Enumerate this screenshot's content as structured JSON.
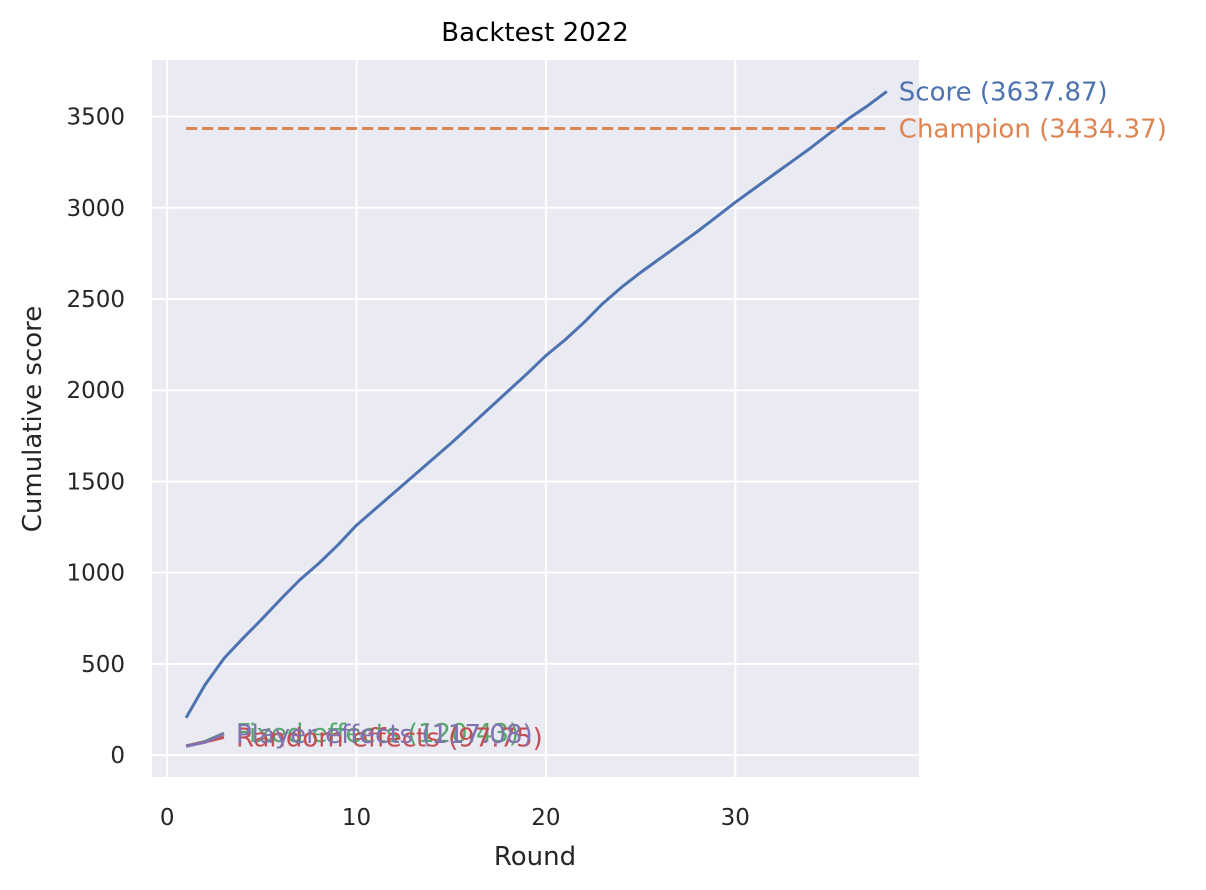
{
  "chart_data": {
    "type": "line",
    "title": "Backtest 2022",
    "xlabel": "Round",
    "ylabel": "Cumulative score",
    "xlim": [
      -0.8,
      39.7
    ],
    "ylim": [
      -120,
      3810
    ],
    "xticks": [
      0,
      10,
      20,
      30
    ],
    "yticks": [
      0,
      500,
      1000,
      1500,
      2000,
      2500,
      3000,
      3500
    ],
    "grid": true,
    "background": "#eaeaf2",
    "series": [
      {
        "name": "Score",
        "label": "Score (3637.87)",
        "color": "#4c72b0",
        "dash": false,
        "x": [
          1,
          2,
          3,
          4,
          5,
          6,
          7,
          8,
          9,
          10,
          11,
          12,
          13,
          14,
          15,
          16,
          17,
          18,
          19,
          20,
          21,
          22,
          23,
          24,
          25,
          26,
          27,
          28,
          29,
          30,
          31,
          32,
          33,
          34,
          35,
          36,
          37,
          38
        ],
        "y": [
          205,
          385,
          530,
          640,
          745,
          855,
          960,
          1050,
          1150,
          1260,
          1350,
          1440,
          1530,
          1620,
          1710,
          1805,
          1900,
          1995,
          2090,
          2190,
          2275,
          2370,
          2475,
          2565,
          2645,
          2720,
          2795,
          2870,
          2950,
          3030,
          3105,
          3180,
          3255,
          3330,
          3410,
          3490,
          3560,
          3637.87
        ]
      },
      {
        "name": "Champion",
        "label": "Champion (3434.37)",
        "color": "#dd8452",
        "dash": true,
        "x": [
          1,
          38
        ],
        "y": [
          3434.37,
          3434.37
        ]
      },
      {
        "name": "Fixed effects",
        "label": "Fixed effects (120.43)",
        "color": "#55a868",
        "dash": false,
        "x": [
          1,
          2,
          3
        ],
        "y": [
          50,
          75,
          120.43
        ]
      },
      {
        "name": "Random effects",
        "label": "Random effects (97.75)",
        "color": "#c44e52",
        "dash": false,
        "x": [
          1,
          2,
          3
        ],
        "y": [
          50,
          72,
          97.75
        ]
      },
      {
        "name": "Player effects",
        "label": "Player effects (117.08)",
        "color": "#8172b3",
        "dash": false,
        "x": [
          1,
          2,
          3
        ],
        "y": [
          48,
          70,
          117.08
        ]
      }
    ]
  }
}
